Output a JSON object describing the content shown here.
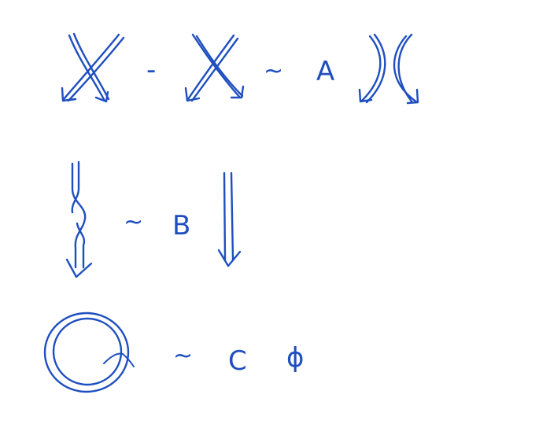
{
  "colors": {
    "ink": "#1f4fbf",
    "background": "#ffffff"
  },
  "rows": [
    {
      "relation": {
        "minus": "-",
        "similar": "~",
        "coefficient": "A"
      }
    },
    {
      "relation": {
        "similar": "~",
        "coefficient": "B"
      }
    },
    {
      "relation": {
        "similar": "~",
        "coefficient": "C",
        "empty_set": "ϕ"
      }
    }
  ]
}
